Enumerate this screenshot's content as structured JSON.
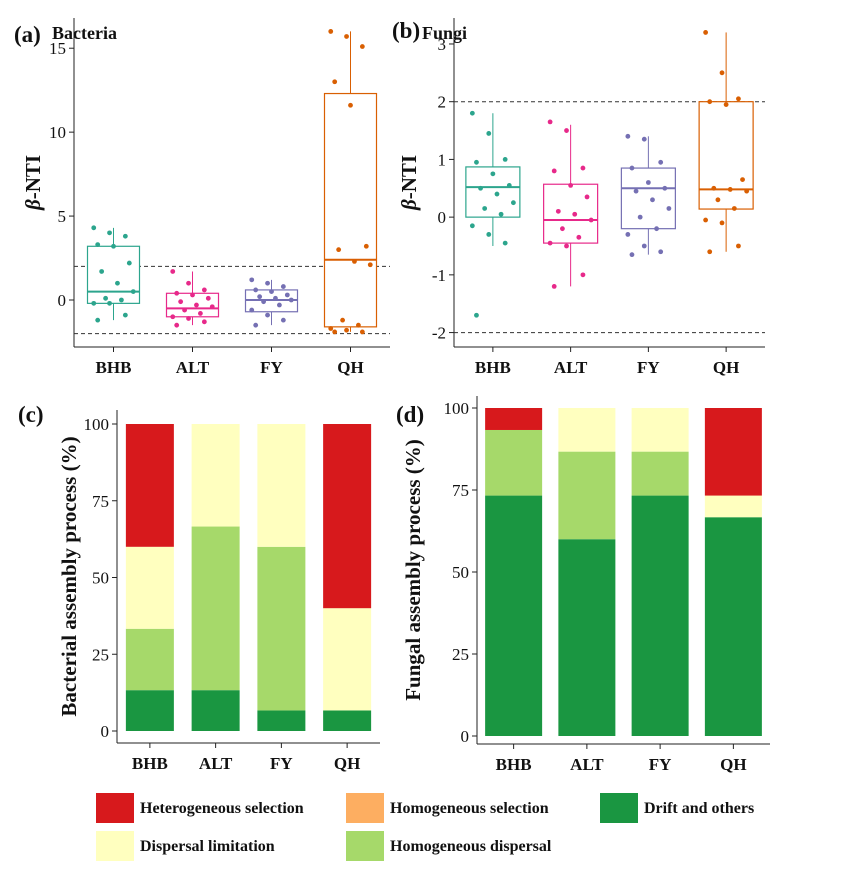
{
  "legend": [
    {
      "label": "Heterogeneous selection",
      "color": "#d7191c"
    },
    {
      "label": "Homogeneous selection",
      "color": "#fdae61"
    },
    {
      "label": "Drift and others",
      "color": "#1a9641"
    },
    {
      "label": "Dispersal limitation",
      "color": "#ffffbf"
    },
    {
      "label": "Homogeneous dispersal",
      "color": "#a6d96a"
    }
  ],
  "chart_data": [
    {
      "panel": "(a)",
      "type": "box",
      "title": "Bacteria",
      "ylabel": "β-NTI",
      "categories": [
        "BHB",
        "ALT",
        "FY",
        "QH"
      ],
      "colors": [
        "#2ca58d",
        "#e7298a",
        "#7570b3",
        "#d95f02"
      ],
      "ylim": [
        -2.8,
        16.8
      ],
      "yticks": [
        0,
        5,
        10,
        15
      ],
      "reference_lines": [
        2,
        -2
      ],
      "boxes": [
        {
          "q1": -0.2,
          "median": 0.5,
          "q3": 3.2,
          "whisker_low": -1.2,
          "whisker_high": 4.3
        },
        {
          "q1": -1.0,
          "median": -0.5,
          "q3": 0.4,
          "whisker_low": -1.5,
          "whisker_high": 1.7
        },
        {
          "q1": -0.7,
          "median": 0.0,
          "q3": 0.6,
          "whisker_low": -1.5,
          "whisker_high": 1.2
        },
        {
          "q1": -1.6,
          "median": 2.4,
          "q3": 12.3,
          "whisker_low": -1.9,
          "whisker_high": 16.0
        }
      ],
      "points": [
        [
          4.3,
          4.0,
          3.8,
          3.3,
          3.2,
          2.2,
          1.7,
          1.0,
          0.5,
          0.1,
          0.0,
          -0.2,
          -0.2,
          -0.9,
          -1.2
        ],
        [
          1.7,
          1.0,
          0.6,
          0.4,
          0.3,
          0.1,
          -0.1,
          -0.3,
          -0.4,
          -0.6,
          -0.8,
          -1.0,
          -1.1,
          -1.3,
          -1.5
        ],
        [
          1.2,
          1.0,
          0.8,
          0.6,
          0.5,
          0.3,
          0.2,
          0.1,
          0.0,
          -0.1,
          -0.3,
          -0.6,
          -0.9,
          -1.2,
          -1.5
        ],
        [
          16.0,
          15.7,
          15.1,
          13.0,
          11.6,
          3.2,
          3.0,
          2.3,
          2.1,
          -1.2,
          -1.5,
          -1.7,
          -1.8,
          -1.9,
          -1.9
        ]
      ]
    },
    {
      "panel": "(b)",
      "type": "box",
      "title": "Fungi",
      "ylabel": "β-NTI",
      "categories": [
        "BHB",
        "ALT",
        "FY",
        "QH"
      ],
      "colors": [
        "#2ca58d",
        "#e7298a",
        "#7570b3",
        "#d95f02"
      ],
      "ylim": [
        -2.25,
        3.45
      ],
      "yticks": [
        -2,
        -1,
        0,
        1,
        2,
        3
      ],
      "reference_lines": [
        2,
        -2
      ],
      "boxes": [
        {
          "q1": 0.0,
          "median": 0.52,
          "q3": 0.87,
          "whisker_low": -0.5,
          "whisker_high": 1.8
        },
        {
          "q1": -0.45,
          "median": -0.05,
          "q3": 0.57,
          "whisker_low": -1.2,
          "whisker_high": 1.6
        },
        {
          "q1": -0.2,
          "median": 0.5,
          "q3": 0.85,
          "whisker_low": -0.65,
          "whisker_high": 1.4
        },
        {
          "q1": 0.14,
          "median": 0.48,
          "q3": 2.0,
          "whisker_low": -0.6,
          "whisker_high": 3.2
        }
      ],
      "points": [
        [
          1.8,
          1.45,
          1.0,
          0.95,
          0.75,
          0.55,
          0.5,
          0.4,
          0.25,
          0.15,
          0.05,
          -0.15,
          -0.3,
          -0.45,
          -1.7
        ],
        [
          1.65,
          1.5,
          0.85,
          0.8,
          0.55,
          0.35,
          0.1,
          0.05,
          -0.05,
          -0.2,
          -0.35,
          -0.45,
          -0.5,
          -1.0,
          -1.2
        ],
        [
          1.4,
          1.35,
          0.95,
          0.85,
          0.6,
          0.5,
          0.45,
          0.3,
          0.15,
          0.0,
          -0.2,
          -0.3,
          -0.5,
          -0.6,
          -0.65
        ],
        [
          3.2,
          2.5,
          2.05,
          2.0,
          1.95,
          0.65,
          0.5,
          0.48,
          0.45,
          0.3,
          0.15,
          -0.05,
          -0.1,
          -0.5,
          -0.6
        ]
      ]
    },
    {
      "panel": "(c)",
      "type": "stacked-bar",
      "ylabel": "Bacterial assembly process (%)",
      "categories": [
        "BHB",
        "ALT",
        "FY",
        "QH"
      ],
      "ylim": [
        0,
        100
      ],
      "yticks": [
        0,
        25,
        50,
        75,
        100
      ],
      "series": [
        {
          "name": "Drift and others",
          "values": [
            13.3,
            13.3,
            6.7,
            6.7
          ]
        },
        {
          "name": "Homogeneous dispersal",
          "values": [
            20.0,
            53.3,
            53.3,
            0
          ]
        },
        {
          "name": "Dispersal limitation",
          "values": [
            26.7,
            33.4,
            40.0,
            33.3
          ]
        },
        {
          "name": "Homogeneous selection",
          "values": [
            0,
            0,
            0,
            0
          ]
        },
        {
          "name": "Heterogeneous selection",
          "values": [
            40.0,
            0,
            0,
            60.0
          ]
        }
      ]
    },
    {
      "panel": "(d)",
      "type": "stacked-bar",
      "ylabel": "Fungal assembly process (%)",
      "categories": [
        "BHB",
        "ALT",
        "FY",
        "QH"
      ],
      "ylim": [
        0,
        100
      ],
      "yticks": [
        0,
        25,
        50,
        75,
        100
      ],
      "series": [
        {
          "name": "Drift and others",
          "values": [
            73.3,
            60.0,
            73.3,
            66.7
          ]
        },
        {
          "name": "Homogeneous dispersal",
          "values": [
            20.0,
            26.7,
            13.4,
            0
          ]
        },
        {
          "name": "Dispersal limitation",
          "values": [
            0,
            13.3,
            13.3,
            6.6
          ]
        },
        {
          "name": "Homogeneous selection",
          "values": [
            0,
            0,
            0,
            0
          ]
        },
        {
          "name": "Heterogeneous selection",
          "values": [
            6.7,
            0,
            0,
            26.7
          ]
        }
      ]
    }
  ]
}
